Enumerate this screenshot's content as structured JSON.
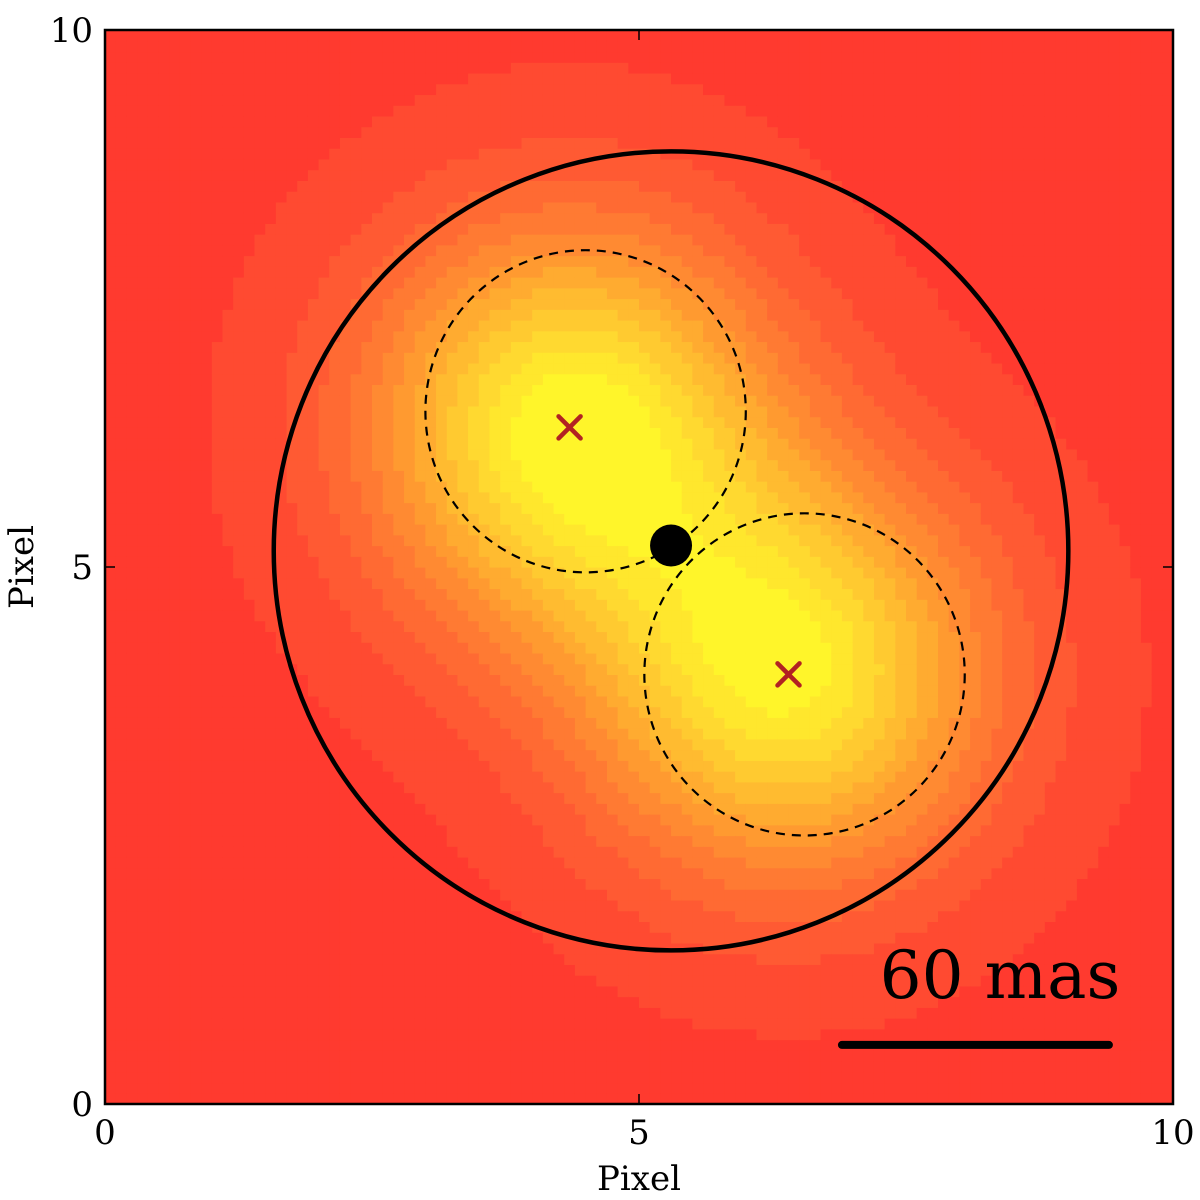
{
  "chart_data": {
    "type": "heatmap",
    "title": "",
    "xlabel": "Pixel",
    "ylabel": "Pixel",
    "xlim": [
      0,
      10
    ],
    "ylim": [
      0,
      10
    ],
    "xticks": [
      0,
      5,
      10
    ],
    "yticks": [
      0,
      5,
      10
    ],
    "x_tick_labels": [
      "0",
      "5",
      "10"
    ],
    "y_tick_labels": [
      "0",
      "5",
      "10"
    ],
    "grid": false,
    "colormap": [
      "#ff3a2f",
      "#ff5a33",
      "#ff7a33",
      "#ff9a30",
      "#ffbb30",
      "#ffd930",
      "#fff52a"
    ],
    "contour_levels": 12,
    "sources": [
      {
        "x": 4.35,
        "y": 6.3,
        "amplitude": 1.0,
        "sigma": 1.3
      },
      {
        "x": 6.4,
        "y": 4.0,
        "amplitude": 0.95,
        "sigma": 1.3
      }
    ],
    "background_level": 0.05,
    "source_markers": [
      {
        "x": 4.35,
        "y": 6.3,
        "marker": "x",
        "color": "#b22222"
      },
      {
        "x": 6.4,
        "y": 4.0,
        "marker": "x",
        "color": "#b22222"
      }
    ],
    "center_marker": {
      "x": 5.3,
      "y": 5.2,
      "marker": "filled-circle",
      "color": "#000000"
    },
    "circles": [
      {
        "cx": 5.3,
        "cy": 5.15,
        "r": 3.72,
        "style": "solid"
      },
      {
        "cx": 4.5,
        "cy": 6.45,
        "r": 1.5,
        "style": "dashed"
      },
      {
        "cx": 6.55,
        "cy": 4.0,
        "r": 1.5,
        "style": "dashed"
      }
    ],
    "scale_bar": {
      "label": "60 mas",
      "x_start": 6.9,
      "x_end": 9.4,
      "y": 0.55
    }
  }
}
